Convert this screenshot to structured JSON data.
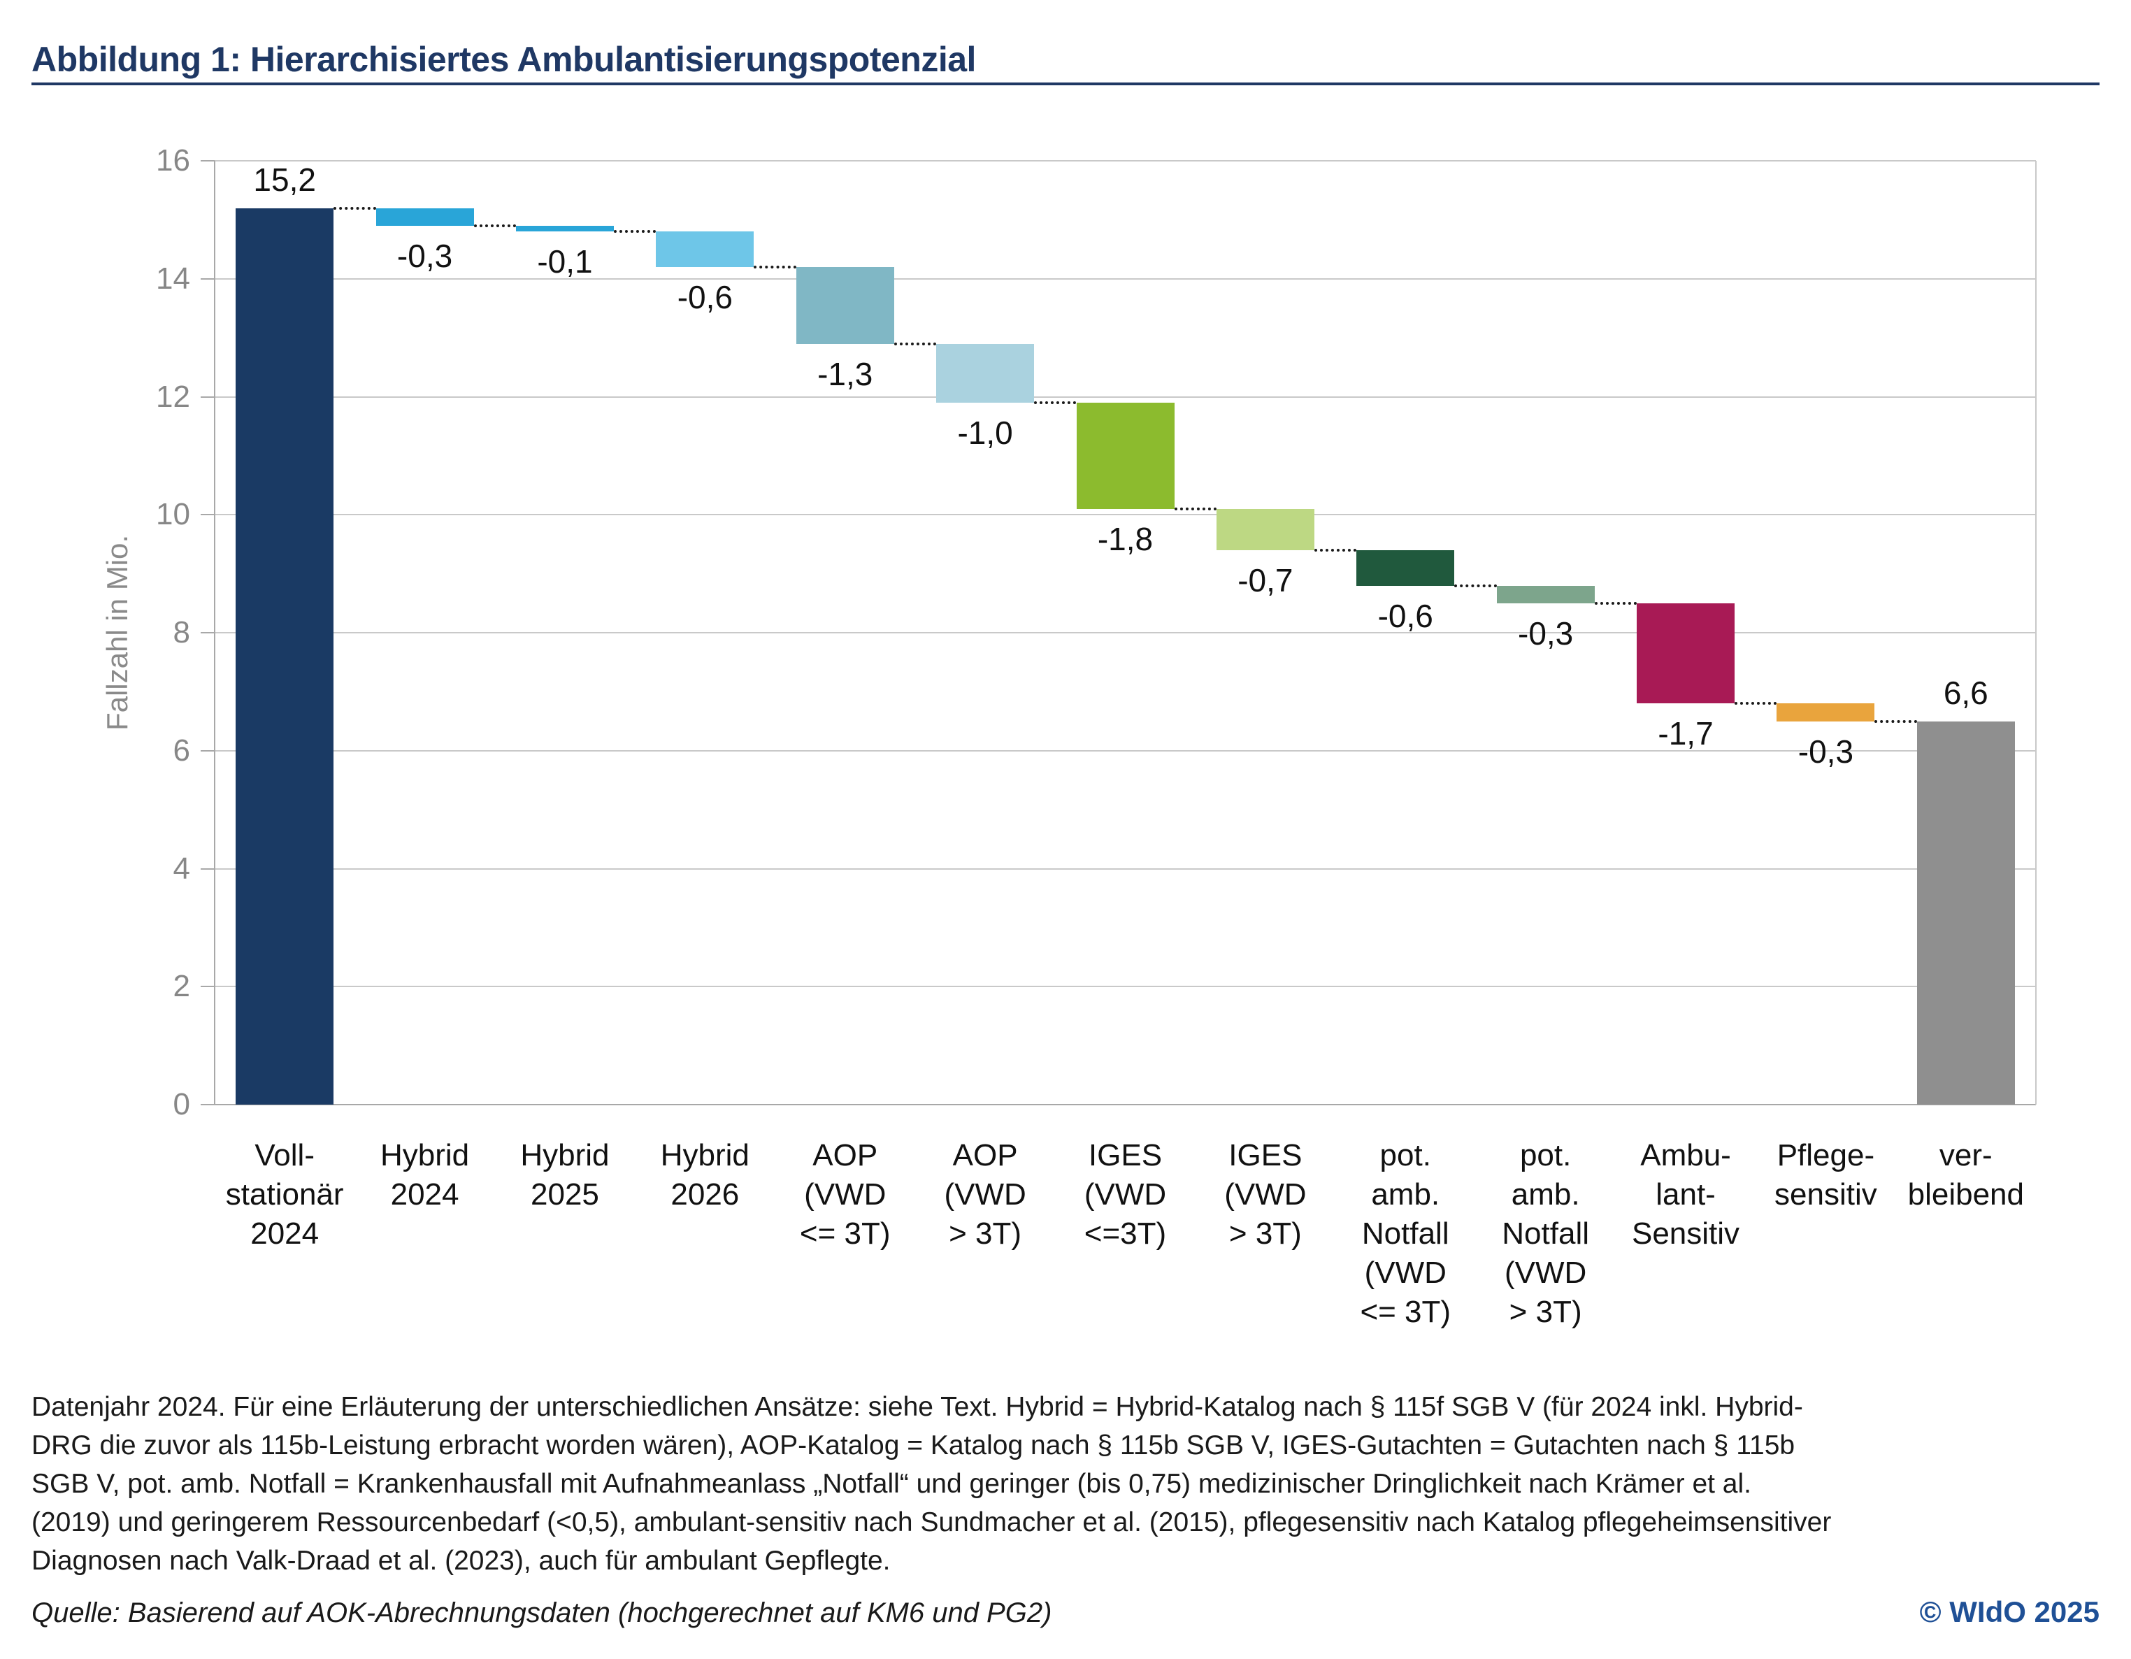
{
  "title": "Abbildung 1: Hierarchisiertes Ambulantisierungspotenzial",
  "chart_data": {
    "type": "bar",
    "subtype": "waterfall",
    "ylabel": "Fallzahl in Mio.",
    "ylim": [
      0,
      16
    ],
    "ytick_step": 2,
    "yticks": [
      0,
      2,
      4,
      6,
      8,
      10,
      12,
      14,
      16
    ],
    "grid": true,
    "categories": [
      "Voll-\nstationär\n2024",
      "Hybrid\n2024",
      "Hybrid\n2025",
      "Hybrid\n2026",
      "AOP\n(VWD\n<= 3T)",
      "AOP\n(VWD\n> 3T)",
      "IGES\n(VWD\n<=3T)",
      "IGES\n(VWD\n> 3T)",
      "pot.\namb.\nNotfall\n(VWD\n<= 3T)",
      "pot.\namb.\nNotfall\n(VWD\n> 3T)",
      "Ambu-\nlant-\nSensitiv",
      "Pflege-\nsensitiv",
      "ver-\nbleibend"
    ],
    "values": [
      15.2,
      -0.3,
      -0.1,
      -0.6,
      -1.3,
      -1.0,
      -1.8,
      -0.7,
      -0.6,
      -0.3,
      -1.7,
      -0.3,
      6.6
    ],
    "value_labels": [
      "15,2",
      "-0,3",
      "-0,1",
      "-0,6",
      "-1,3",
      "-1,0",
      "-1,8",
      "-0,7",
      "-0,6",
      "-0,3",
      "-1,7",
      "-0,3",
      "6,6"
    ],
    "bar_types": [
      "start",
      "decrease",
      "decrease",
      "decrease",
      "decrease",
      "decrease",
      "decrease",
      "decrease",
      "decrease",
      "decrease",
      "decrease",
      "decrease",
      "result"
    ],
    "bar_colors": [
      "#1a3a64",
      "#29a5d8",
      "#29a5d8",
      "#6ec6e8",
      "#80b7c5",
      "#aad2df",
      "#8cbb2e",
      "#bdd883",
      "#20593d",
      "#7da58c",
      "#a81a55",
      "#e9a43d",
      "#8f8f8f"
    ],
    "connector_color": "#1a1a1a",
    "legend": "none"
  },
  "colors": {
    "title_navy": "#1f3864",
    "copyright_blue": "#1f5096",
    "gridline": "#c9c9c9",
    "axis": "#a8a8a8",
    "tick_label_gray": "#878787"
  },
  "footnote": "Datenjahr 2024. Für eine Erläuterung der unterschiedlichen Ansätze: siehe Text. Hybrid = Hybrid-Katalog nach § 115f SGB V (für 2024 inkl. Hybrid-\nDRG die zuvor als 115b-Leistung erbracht worden wären), AOP-Katalog = Katalog nach § 115b SGB V, IGES-Gutachten = Gutachten nach § 115b\nSGB V, pot. amb. Notfall = Krankenhausfall mit Aufnahmeanlass „Notfall“ und geringer (bis 0,75) medizinischer Dringlichkeit nach Krämer et al.\n(2019) und geringerem Ressourcenbedarf (<0,5), ambulant-sensitiv nach Sundmacher et al. (2015), pflegesensitiv nach Katalog pflegeheimsensitiver\nDiagnosen nach Valk-Draad et al. (2023), auch für ambulant Gepflegte.",
  "source": "Quelle: Basierend auf AOK-Abrechnungsdaten (hochgerechnet auf KM6 und PG2)",
  "copyright": "© WIdO 2025"
}
